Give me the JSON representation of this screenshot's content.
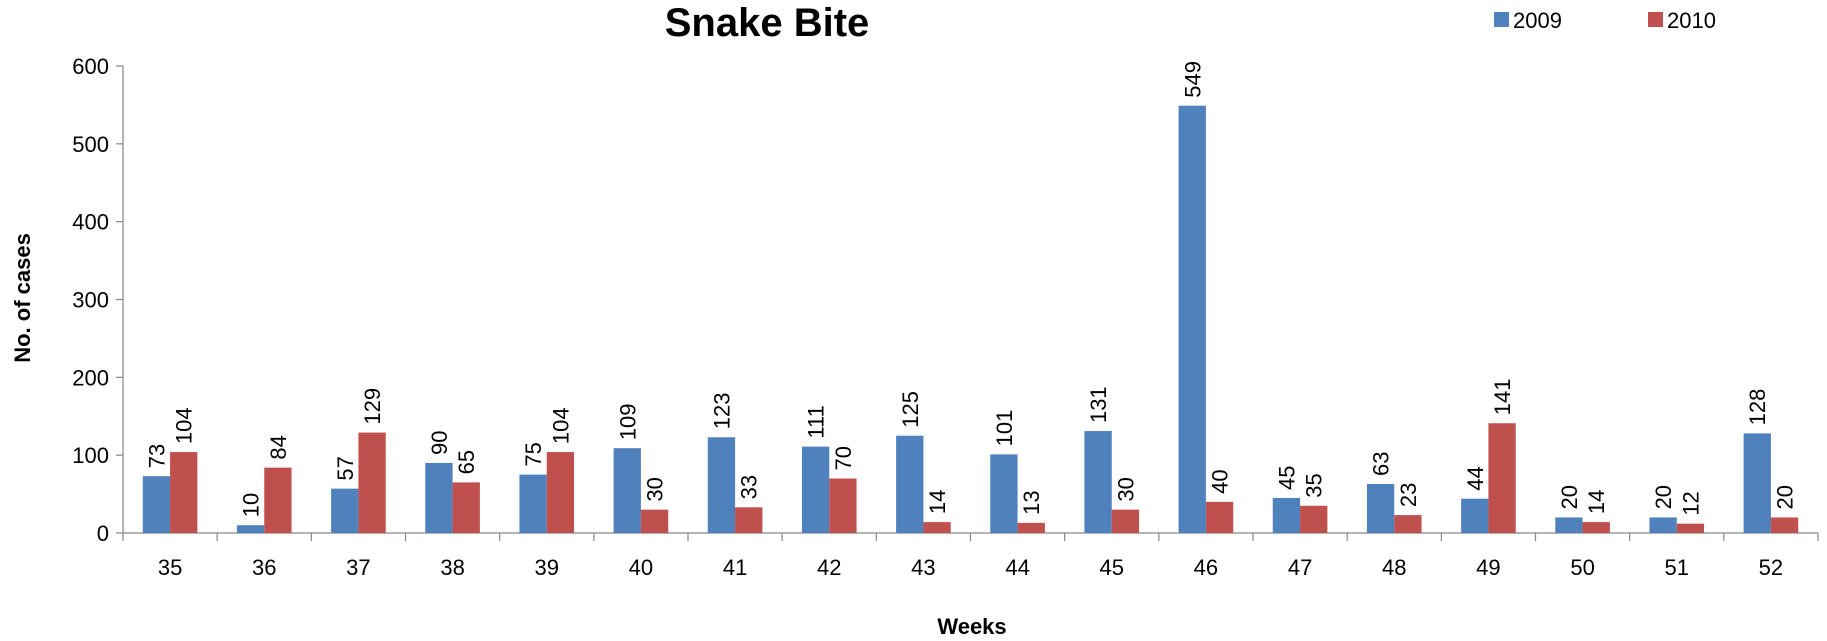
{
  "chart_data": {
    "type": "bar",
    "title": "Snake Bite",
    "xlabel": "Weeks",
    "ylabel": "No. of cases",
    "categories": [
      "35",
      "36",
      "37",
      "38",
      "39",
      "40",
      "41",
      "42",
      "43",
      "44",
      "45",
      "46",
      "47",
      "48",
      "49",
      "50",
      "51",
      "52"
    ],
    "series": [
      {
        "name": "2009",
        "color": "#4F81BD",
        "values": [
          73,
          10,
          57,
          90,
          75,
          109,
          123,
          111,
          125,
          101,
          131,
          549,
          45,
          63,
          44,
          20,
          20,
          128
        ]
      },
      {
        "name": "2010",
        "color": "#C0504D",
        "values": [
          104,
          84,
          129,
          65,
          104,
          30,
          33,
          70,
          14,
          13,
          30,
          40,
          35,
          23,
          141,
          14,
          12,
          20
        ]
      }
    ],
    "ylim": [
      0,
      600
    ],
    "yticks": [
      0,
      100,
      200,
      300,
      400,
      500,
      600
    ],
    "grid": false,
    "legend": "top-right",
    "data_labels": true
  }
}
